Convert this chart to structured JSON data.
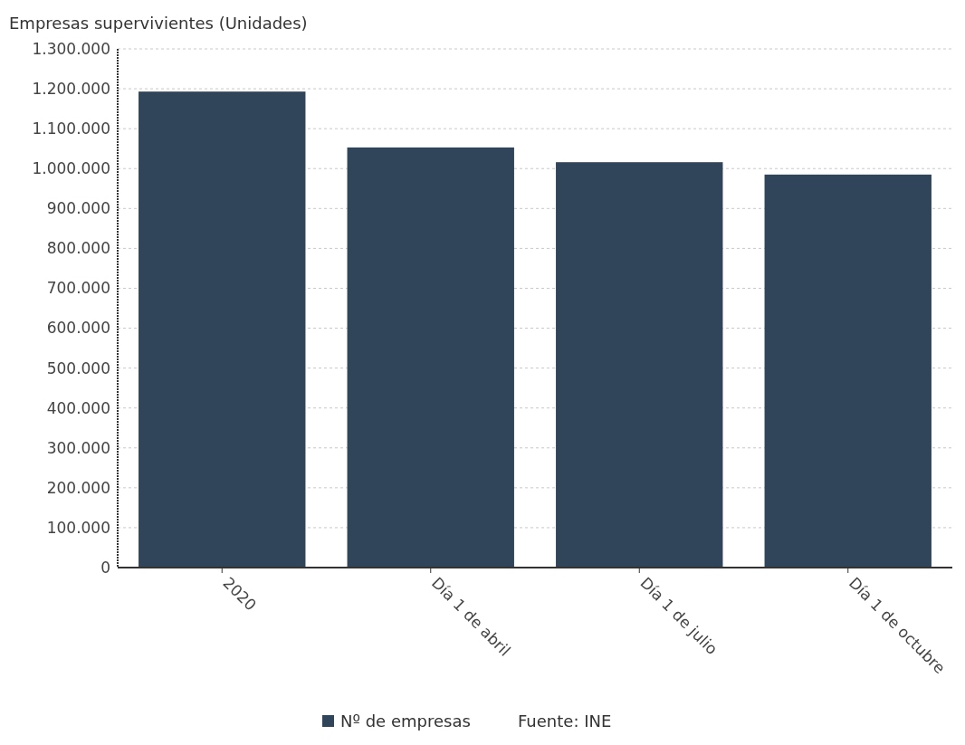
{
  "chart_data": {
    "type": "bar",
    "ylabel": "Empresas supervivientes (Unidades)",
    "categories": [
      "2020",
      "Día 1 de abril",
      "Día 1 de julio",
      "Día 1 de octubre"
    ],
    "series": [
      {
        "name": "Nº de empresas",
        "color": "#31455a",
        "values": [
          1193000,
          1053000,
          1016000,
          985000
        ]
      }
    ],
    "ylim": [
      0,
      1300000
    ],
    "yticks": [
      0,
      {
        "value": 100000,
        "label": "100.000"
      },
      {
        "value": 200000,
        "label": "200.000"
      },
      {
        "value": 300000,
        "label": "300.000"
      },
      {
        "value": 400000,
        "label": "400.000"
      },
      {
        "value": 500000,
        "label": "500.000"
      },
      {
        "value": 600000,
        "label": "600.000"
      },
      {
        "value": 700000,
        "label": "700.000"
      },
      {
        "value": 800000,
        "label": "800.000"
      },
      {
        "value": 900000,
        "label": "900.000"
      },
      {
        "value": 1000000,
        "label": "1.000.000"
      },
      {
        "value": 1100000,
        "label": "1.100.000"
      },
      {
        "value": 1200000,
        "label": "1.200.000"
      },
      {
        "value": 1300000,
        "label": "1.300.000"
      }
    ],
    "grid": "y",
    "legend": "bottom",
    "annotations": [
      "Fuente: INE"
    ]
  }
}
